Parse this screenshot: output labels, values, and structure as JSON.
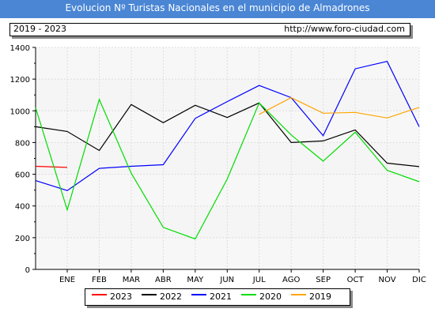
{
  "header": {
    "title": "Evolucion Nº Turistas Nacionales en el municipio de Almadrones",
    "period": "2019 - 2023",
    "url": "http://www.foro-ciudad.com"
  },
  "chart_data": {
    "type": "line",
    "title": "Evolucion Nº Turistas Nacionales en el municipio de Almadrones",
    "categories": [
      "ENE",
      "FEB",
      "MAR",
      "ABR",
      "MAY",
      "JUN",
      "JUL",
      "AGO",
      "SEP",
      "OCT",
      "NOV",
      "DIC"
    ],
    "ylim": [
      0,
      1400
    ],
    "yticks": [
      0,
      200,
      400,
      600,
      800,
      1000,
      1200,
      1400
    ],
    "grid": true,
    "legend_position": "bottom",
    "series": [
      {
        "name": "2023",
        "color": "#ff0000",
        "values": [
          643,
          null,
          null,
          null,
          null,
          null,
          null,
          null,
          null,
          null,
          null,
          null
        ],
        "start": 650
      },
      {
        "name": "2022",
        "color": "#000000",
        "values": [
          870,
          750,
          1040,
          925,
          1035,
          958,
          1050,
          800,
          810,
          880,
          670,
          648
        ],
        "start": 900
      },
      {
        "name": "2021",
        "color": "#0000ff",
        "values": [
          497,
          637,
          650,
          660,
          952,
          1058,
          1160,
          1083,
          843,
          1265,
          1312,
          900
        ],
        "start": 560
      },
      {
        "name": "2020",
        "color": "#00dd00",
        "values": [
          375,
          1072,
          607,
          265,
          192,
          570,
          1050,
          848,
          683,
          865,
          625,
          553
        ],
        "start": 1020
      },
      {
        "name": "2019",
        "color": "#ffa500",
        "values": [
          null,
          null,
          null,
          null,
          null,
          null,
          978,
          1083,
          985,
          990,
          955,
          1022
        ]
      }
    ]
  },
  "legend": [
    {
      "label": "2023",
      "color": "#ff0000"
    },
    {
      "label": "2022",
      "color": "#000000"
    },
    {
      "label": "2021",
      "color": "#0000ff"
    },
    {
      "label": "2020",
      "color": "#00dd00"
    },
    {
      "label": "2019",
      "color": "#ffa500"
    }
  ]
}
